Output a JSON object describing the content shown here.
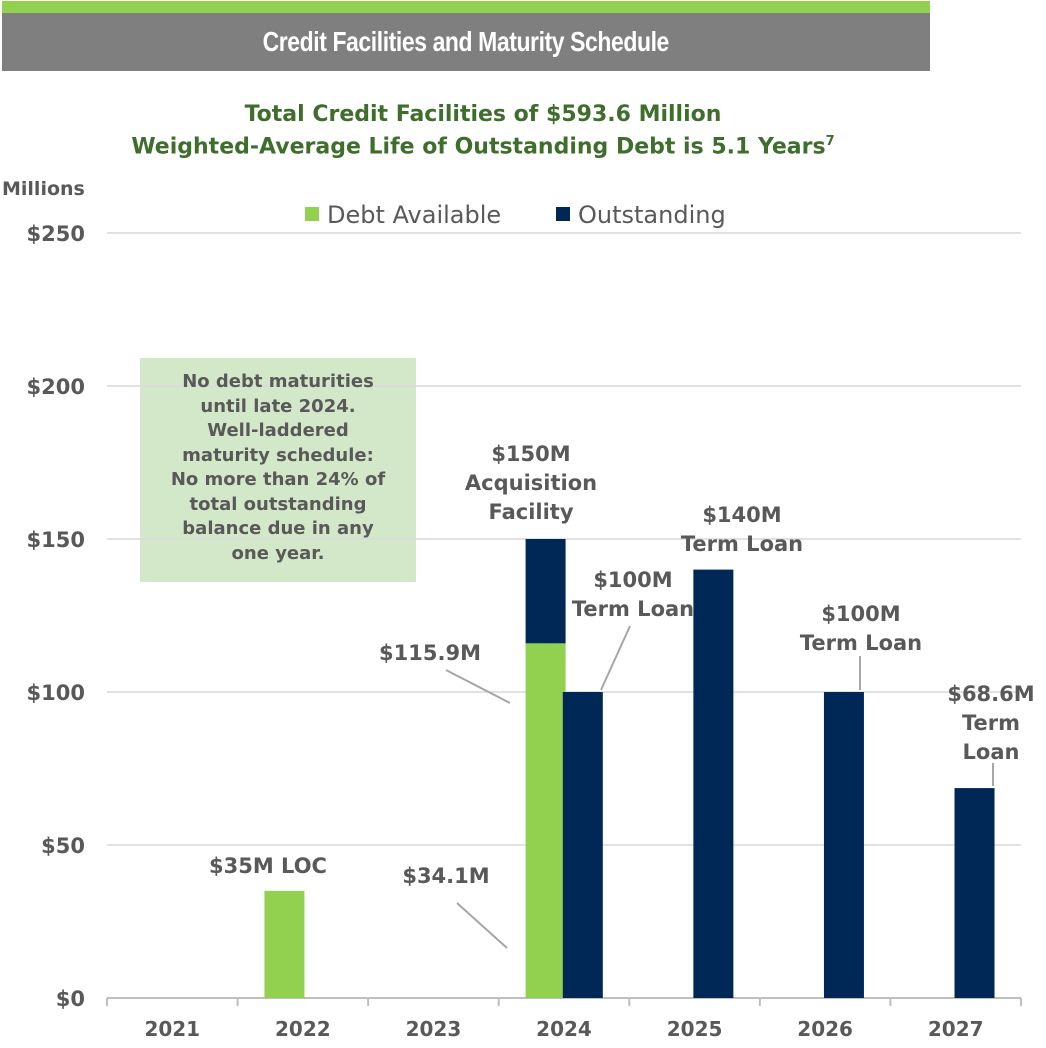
{
  "banner": {
    "title": "Credit Facilities and Maturity Schedule"
  },
  "colors": {
    "available": "#92d050",
    "outstanding": "#002856",
    "axis_text": "#595959",
    "title": "#3e6e2c",
    "banner_bg": "#7f7f7f",
    "annotation_bg": "#d3e8c8"
  },
  "chart_data": {
    "type": "bar",
    "title": "Total Credit Facilities of $593.6 Million",
    "subtitle": "Weighted-Average Life of Outstanding Debt is 5.1 Years",
    "subtitle_superscript": "7",
    "ylabel": "Millions",
    "xlabel": "",
    "ylim": [
      0,
      250
    ],
    "yticks": [
      "$0",
      "$50",
      "$100",
      "$150",
      "$200",
      "$250"
    ],
    "ytick_values": [
      0,
      50,
      100,
      150,
      200,
      250
    ],
    "grid": true,
    "legend_position": "top-center",
    "categories": [
      "2021",
      "2022",
      "2023",
      "2024",
      "2025",
      "2026",
      "2027"
    ],
    "stacked": true,
    "series": [
      {
        "name": "Debt Available",
        "color": "#92d050",
        "bars": [
          {
            "category": "2022",
            "slot": "left",
            "value": 35
          },
          {
            "category": "2024",
            "slot": "left",
            "value": 115.9
          }
        ]
      },
      {
        "name": "Outstanding",
        "color": "#002856",
        "bars": [
          {
            "category": "2024",
            "slot": "left",
            "value": 34.1
          },
          {
            "category": "2024",
            "slot": "right",
            "value": 100
          },
          {
            "category": "2025",
            "slot": "right",
            "value": 140
          },
          {
            "category": "2026",
            "slot": "right",
            "value": 100
          },
          {
            "category": "2027",
            "slot": "right",
            "value": 68.6
          }
        ]
      }
    ],
    "data_labels": [
      {
        "id": "loc-2022",
        "lines": [
          "$35M LOC"
        ]
      },
      {
        "id": "acq-2024",
        "lines": [
          "$150M",
          "Acquisition",
          "Facility"
        ]
      },
      {
        "id": "avail-2024",
        "lines": [
          "$115.9M"
        ]
      },
      {
        "id": "out-2024",
        "lines": [
          "$34.1M"
        ]
      },
      {
        "id": "term-2024",
        "lines": [
          "$100M",
          "Term Loan"
        ]
      },
      {
        "id": "term-2025",
        "lines": [
          "$140M",
          "Term Loan"
        ]
      },
      {
        "id": "term-2026",
        "lines": [
          "$100M",
          "Term Loan"
        ]
      },
      {
        "id": "term-2027",
        "lines": [
          "$68.6M",
          "Term",
          "Loan"
        ]
      }
    ],
    "annotation": [
      "No debt maturities",
      "until late 2024.",
      "Well-laddered",
      "maturity schedule:",
      "No more than 24% of",
      "total outstanding",
      "balance due in any",
      "one year."
    ]
  }
}
